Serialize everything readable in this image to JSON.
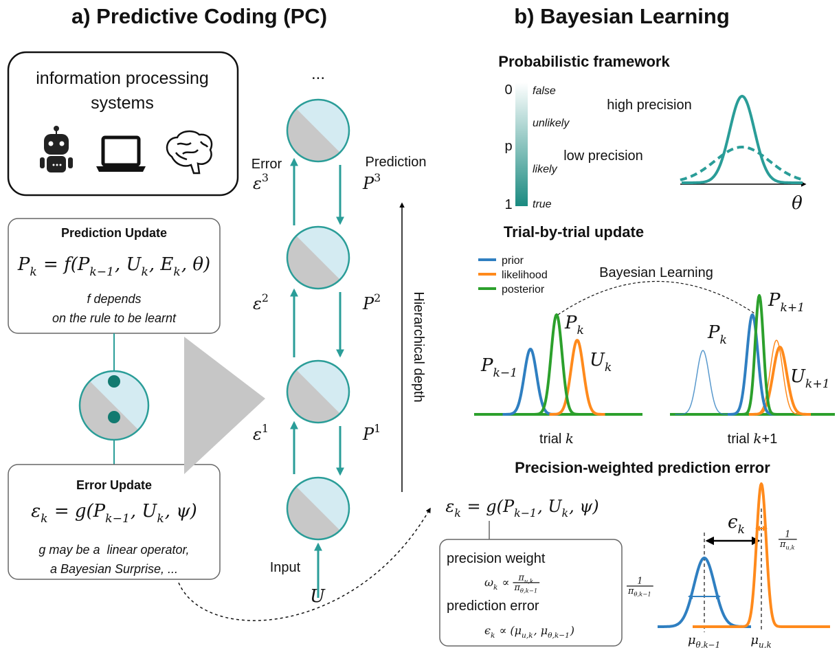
{
  "panel_a": {
    "title": "a) Predictive Coding (PC)",
    "systems_box": {
      "lines": [
        "information processing",
        "systems"
      ]
    },
    "prediction_update": {
      "title": "Prediction Update",
      "formula": [
        "P",
        {
          "sub": "k"
        },
        " = f(P",
        {
          "sub": "k−1"
        },
        ", U",
        {
          "sub": "k"
        },
        ", E",
        {
          "sub": "k"
        },
        ", θ)"
      ],
      "note": [
        "f depends",
        "on the rule to be learnt"
      ]
    },
    "error_update": {
      "title": "Error Update",
      "formula": [
        "ε",
        {
          "sub": "k"
        },
        " = g(P",
        {
          "sub": "k−1"
        },
        ", U",
        {
          "sub": "k"
        },
        ", ψ)"
      ],
      "note": [
        "g may be a  linear operator,",
        "a Bayesian Surprise, ..."
      ]
    },
    "hierarchy": {
      "ellipsis": "...",
      "error": "Error",
      "prediction": "Prediction",
      "levels": [
        {
          "error": [
            "ε",
            {
              "sup": "3"
            }
          ],
          "prediction": [
            "P",
            {
              "sup": "3"
            }
          ]
        },
        {
          "error": [
            "ε",
            {
              "sup": "2"
            }
          ],
          "prediction": [
            "P",
            {
              "sup": "2"
            }
          ]
        },
        {
          "error": [
            "ε",
            {
              "sup": "1"
            }
          ],
          "prediction": [
            "P",
            {
              "sup": "1"
            }
          ]
        }
      ],
      "input": "Input",
      "input_symbol": "U",
      "depth": "Hierarchical depth"
    }
  },
  "panel_b": {
    "title": "b) Bayesian Learning",
    "probabilistic": {
      "title": "Probabilistic framework",
      "scale": {
        "top": "0",
        "middle": "p",
        "bottom": "1",
        "labels": [
          "false",
          "unlikely",
          "likely",
          "true"
        ]
      },
      "high": "high precision",
      "low": "low precision",
      "axis": "θ"
    },
    "trial": {
      "title": "Trial-by-trial update",
      "legend": [
        {
          "name": "prior",
          "color": "#2f7fc1"
        },
        {
          "name": "likelihood",
          "color": "#ff8a1c"
        },
        {
          "name": "posterior",
          "color": "#2ca02c"
        }
      ],
      "arc_label": "Bayesian Learning",
      "left": {
        "labels": [
          [
            "P",
            {
              "sub": "k−1"
            }
          ],
          [
            "P",
            {
              "sub": "k"
            }
          ],
          [
            "U",
            {
              "sub": "k"
            }
          ]
        ],
        "caption": [
          "trial ",
          {
            "it": "k"
          }
        ]
      },
      "right": {
        "labels": [
          [
            "P",
            {
              "sub": "k"
            }
          ],
          [
            "P",
            {
              "sub": "k+1"
            }
          ],
          [
            "U",
            {
              "sub": "k+1"
            }
          ]
        ],
        "caption": [
          "trial ",
          {
            "it": "k"
          },
          "+1"
        ]
      }
    },
    "pwpe": {
      "title": "Precision-weighted prediction error",
      "formula": [
        "ε",
        {
          "sub": "k"
        },
        " = g(P",
        {
          "sub": "k−1"
        },
        ", U",
        {
          "sub": "k"
        },
        ", ψ)"
      ],
      "weight_label": "precision weight",
      "weight_formula": [
        "ω",
        {
          "sub": "k"
        },
        " ∝ ",
        {
          "frac": {
            "num": [
              "π",
              {
                "sub": "u,k"
              }
            ],
            "den": [
              "π",
              {
                "sub": "θ,k−1"
              }
            ]
          }
        }
      ],
      "error_label": "prediction error",
      "error_formula": [
        "ϵ",
        {
          "sub": "k"
        },
        " ∝ (μ",
        {
          "sub": "u,k"
        },
        ", μ",
        {
          "sub": "θ,k−1"
        },
        ")"
      ],
      "epsilon": [
        "ϵ",
        {
          "sub": "k"
        }
      ],
      "likelihood_width": [
        {
          "frac": {
            "num": [
              "1"
            ],
            "den": [
              "π",
              {
                "sub": "u,k"
              }
            ]
          }
        }
      ],
      "prior_width": [
        {
          "frac": {
            "num": [
              "1"
            ],
            "den": [
              "π",
              {
                "sub": "θ,k−1"
              }
            ]
          }
        }
      ],
      "prior_mean": [
        "μ",
        {
          "sub": "θ,k−1"
        }
      ],
      "likelihood_mean": [
        "μ",
        {
          "sub": "u,k"
        }
      ]
    }
  }
}
